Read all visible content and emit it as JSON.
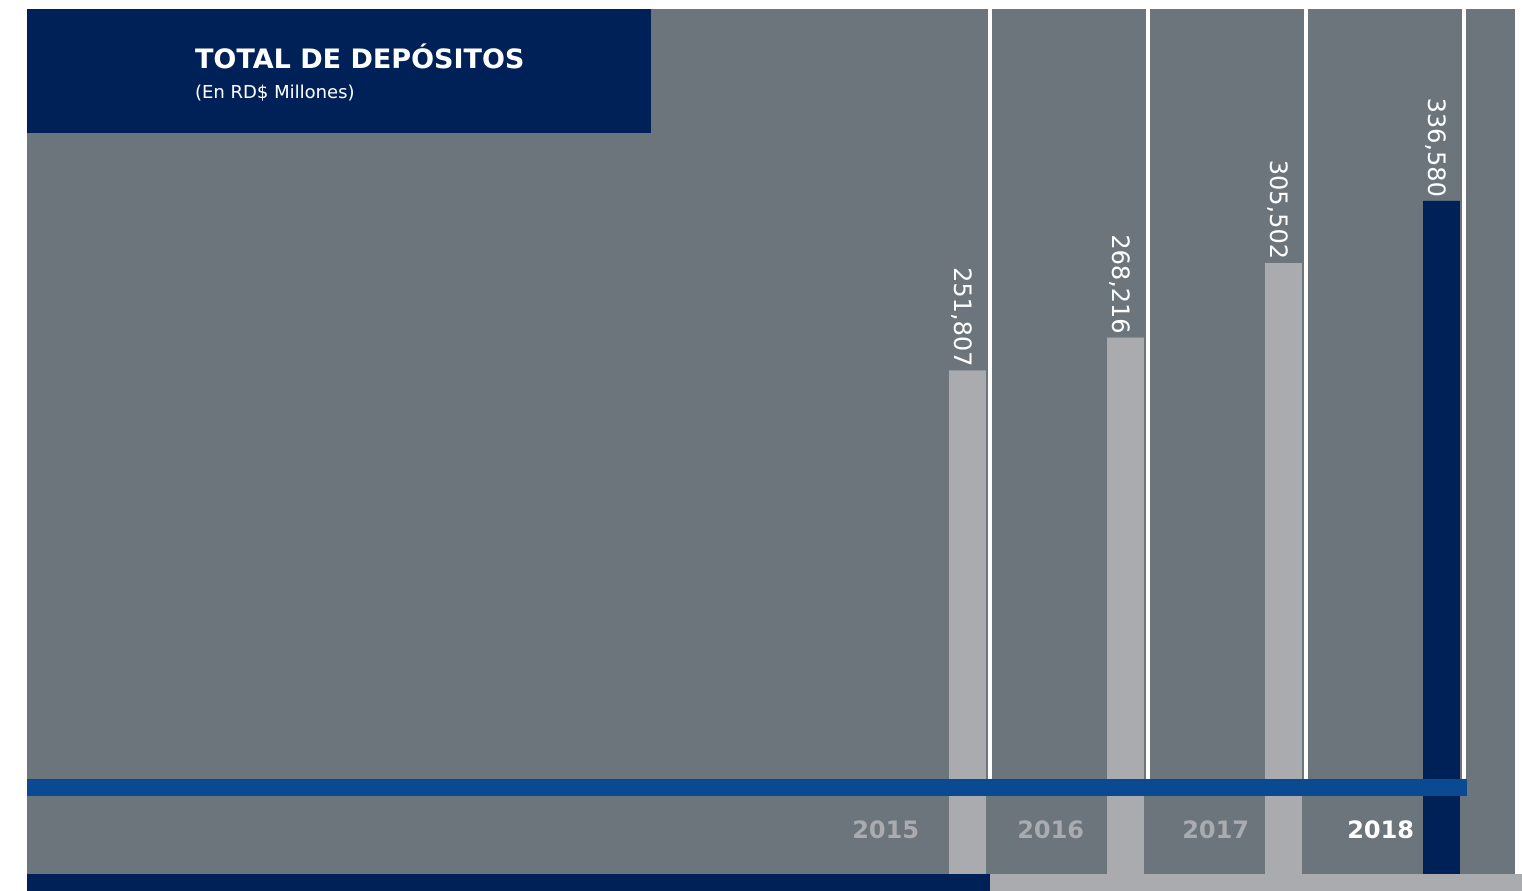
{
  "chart_data": {
    "type": "bar",
    "title": "TOTAL DE DEPÓSITOS",
    "subtitle": "(En RD$ Millones)",
    "categories": [
      "2015",
      "2016",
      "2017",
      "2018"
    ],
    "values": [
      251807,
      268216,
      305502,
      336580
    ],
    "value_labels": [
      "251,807",
      "268,216",
      "305,502",
      "336,580"
    ],
    "colors": [
      "#a9abaf",
      "#a9abaf",
      "#a9abaf",
      "#002157"
    ],
    "label_colors": [
      "#a9abaf",
      "#a9abaf",
      "#a9abaf",
      "#ffffff"
    ],
    "ylim": [
      0,
      432500
    ]
  }
}
